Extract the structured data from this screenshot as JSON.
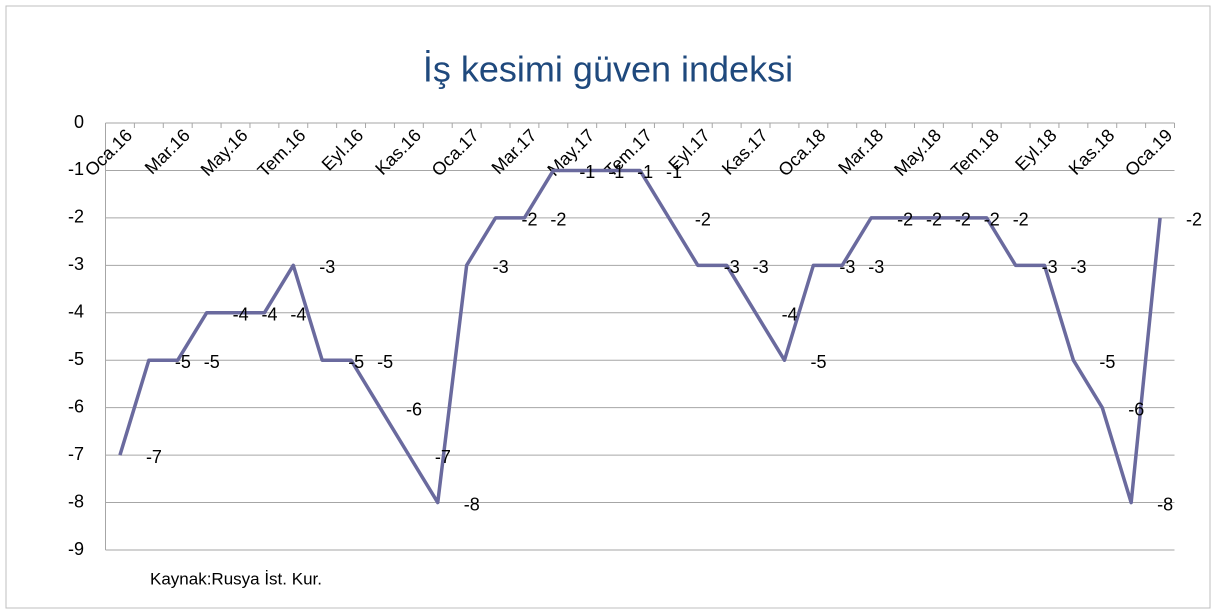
{
  "chart_data": {
    "type": "line",
    "title": "İş kesimi güven indeksi",
    "annotations": [
      "Kaynak:Rusya İst. Kur."
    ],
    "categories": [
      "Oca.16",
      null,
      "Mar.16",
      null,
      "May.16",
      null,
      "Tem.16",
      null,
      "Eyl.16",
      null,
      "Kas.16",
      null,
      "Oca.17",
      null,
      "Mar.17",
      null,
      "May.17",
      null,
      "Tem.17",
      null,
      "Eyl.17",
      null,
      "Kas.17",
      null,
      "Oca.18",
      null,
      "Mar.18",
      null,
      "May.18",
      null,
      "Tem.18",
      null,
      "Eyl.18",
      null,
      "Kas.18",
      null,
      "Oca.19"
    ],
    "series": [
      {
        "color": "#6a6a9e",
        "values": [
          -7,
          -5,
          -5,
          -4,
          -4,
          -4,
          -3,
          -5,
          -5,
          -6,
          -7,
          -8,
          -3,
          -2,
          -2,
          -1,
          -1,
          -1,
          -1,
          -2,
          -3,
          -3,
          -4,
          -5,
          -3,
          -3,
          -2,
          -2,
          -2,
          -2,
          -2,
          -3,
          -3,
          -5,
          -6,
          -8,
          -2
        ]
      }
    ],
    "ylim": [
      -9,
      0
    ],
    "yticks": [
      -9,
      -8,
      -7,
      -6,
      -5,
      -4,
      -3,
      -2,
      -1,
      0
    ],
    "grid": true
  }
}
